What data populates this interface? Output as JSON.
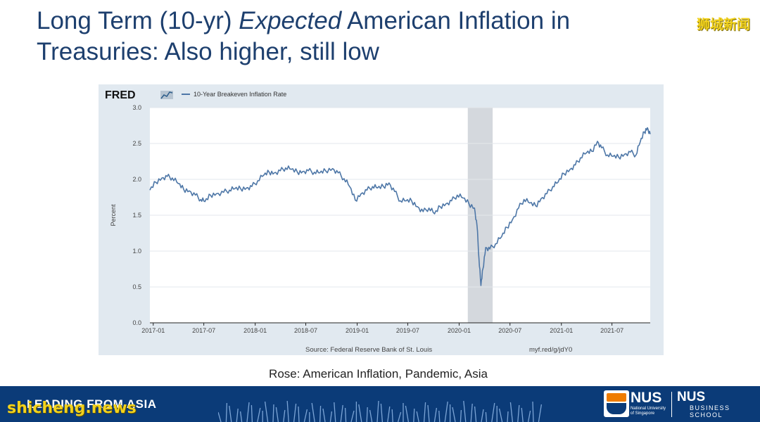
{
  "slide": {
    "title_part1": "Long Term (10-yr) ",
    "title_emphasis": "Expected",
    "title_part2": " American Inflation in Treasuries: Also higher, still low",
    "caption": "Rose: American Inflation, Pandemic, Asia"
  },
  "watermarks": {
    "top": "狮城新闻",
    "bottom": "shicheng.news"
  },
  "footer": {
    "tagline": "LEADING FROM ASIA",
    "nus_name": "NUS",
    "nus_sub_line1": "National University",
    "nus_sub_line2": "of Singapore",
    "school_name": "NUS",
    "school_line1": "BUSINESS",
    "school_line2": "SCHOOL"
  },
  "colors": {
    "title": "#1d3f6e",
    "line": "#4e77a7",
    "recession": "#d4d8dd",
    "footer_band": "#0b3b78",
    "frame": "#e1e9f0"
  },
  "chart_data": {
    "type": "line",
    "brand": "FRED",
    "legend": "10-Year Breakeven Inflation Rate",
    "ylabel": "Percent",
    "ylim": [
      0.0,
      3.0
    ],
    "yticks": [
      "0.0",
      "0.5",
      "1.0",
      "1.5",
      "2.0",
      "2.5",
      "3.0"
    ],
    "xlim": [
      "2016-12-20",
      "2021-11-15"
    ],
    "xticks": [
      "2017-01",
      "2017-07",
      "2018-01",
      "2018-07",
      "2019-01",
      "2019-07",
      "2020-01",
      "2020-07",
      "2021-01",
      "2021-07"
    ],
    "recession": {
      "start": "2020-02-01",
      "end": "2020-04-30"
    },
    "source": "Source: Federal Reserve Bank of St. Louis",
    "url": "myf.red/g/jdY0",
    "series": [
      {
        "name": "10-Year Breakeven Inflation Rate",
        "points": [
          [
            "2016-12-20",
            1.85
          ],
          [
            "2017-01-10",
            1.96
          ],
          [
            "2017-02-01",
            2.02
          ],
          [
            "2017-02-20",
            2.04
          ],
          [
            "2017-03-10",
            2.02
          ],
          [
            "2017-04-01",
            1.94
          ],
          [
            "2017-04-20",
            1.86
          ],
          [
            "2017-05-10",
            1.84
          ],
          [
            "2017-06-01",
            1.78
          ],
          [
            "2017-06-20",
            1.72
          ],
          [
            "2017-07-05",
            1.69
          ],
          [
            "2017-07-25",
            1.78
          ],
          [
            "2017-08-15",
            1.8
          ],
          [
            "2017-09-10",
            1.82
          ],
          [
            "2017-10-01",
            1.85
          ],
          [
            "2017-10-20",
            1.87
          ],
          [
            "2017-11-10",
            1.87
          ],
          [
            "2017-12-01",
            1.88
          ],
          [
            "2017-12-20",
            1.9
          ],
          [
            "2018-01-10",
            1.98
          ],
          [
            "2018-02-01",
            2.06
          ],
          [
            "2018-02-20",
            2.1
          ],
          [
            "2018-03-10",
            2.09
          ],
          [
            "2018-04-01",
            2.12
          ],
          [
            "2018-04-20",
            2.16
          ],
          [
            "2018-05-10",
            2.14
          ],
          [
            "2018-06-01",
            2.1
          ],
          [
            "2018-06-20",
            2.11
          ],
          [
            "2018-07-10",
            2.12
          ],
          [
            "2018-08-01",
            2.1
          ],
          [
            "2018-08-20",
            2.09
          ],
          [
            "2018-09-10",
            2.12
          ],
          [
            "2018-10-05",
            2.15
          ],
          [
            "2018-10-25",
            2.09
          ],
          [
            "2018-11-15",
            2.01
          ],
          [
            "2018-12-05",
            1.9
          ],
          [
            "2018-12-25",
            1.71
          ],
          [
            "2019-01-15",
            1.8
          ],
          [
            "2019-02-05",
            1.85
          ],
          [
            "2019-02-25",
            1.9
          ],
          [
            "2019-03-15",
            1.88
          ],
          [
            "2019-04-05",
            1.9
          ],
          [
            "2019-04-25",
            1.95
          ],
          [
            "2019-05-15",
            1.83
          ],
          [
            "2019-06-05",
            1.7
          ],
          [
            "2019-06-25",
            1.7
          ],
          [
            "2019-07-15",
            1.7
          ],
          [
            "2019-08-05",
            1.62
          ],
          [
            "2019-08-25",
            1.55
          ],
          [
            "2019-09-15",
            1.6
          ],
          [
            "2019-10-05",
            1.52
          ],
          [
            "2019-10-25",
            1.62
          ],
          [
            "2019-11-15",
            1.66
          ],
          [
            "2019-12-05",
            1.7
          ],
          [
            "2019-12-25",
            1.78
          ],
          [
            "2020-01-15",
            1.74
          ],
          [
            "2020-02-05",
            1.66
          ],
          [
            "2020-02-25",
            1.6
          ],
          [
            "2020-03-05",
            1.35
          ],
          [
            "2020-03-12",
            0.9
          ],
          [
            "2020-03-19",
            0.52
          ],
          [
            "2020-03-26",
            0.75
          ],
          [
            "2020-04-05",
            1.05
          ],
          [
            "2020-04-20",
            1.03
          ],
          [
            "2020-05-10",
            1.1
          ],
          [
            "2020-06-01",
            1.2
          ],
          [
            "2020-06-20",
            1.33
          ],
          [
            "2020-07-10",
            1.44
          ],
          [
            "2020-08-01",
            1.6
          ],
          [
            "2020-08-20",
            1.72
          ],
          [
            "2020-09-10",
            1.67
          ],
          [
            "2020-10-01",
            1.63
          ],
          [
            "2020-10-20",
            1.73
          ],
          [
            "2020-11-10",
            1.8
          ],
          [
            "2020-12-01",
            1.9
          ],
          [
            "2020-12-20",
            1.96
          ],
          [
            "2021-01-10",
            2.08
          ],
          [
            "2021-02-01",
            2.14
          ],
          [
            "2021-02-20",
            2.2
          ],
          [
            "2021-03-10",
            2.3
          ],
          [
            "2021-04-01",
            2.37
          ],
          [
            "2021-04-20",
            2.39
          ],
          [
            "2021-05-10",
            2.53
          ],
          [
            "2021-05-25",
            2.44
          ],
          [
            "2021-06-15",
            2.34
          ],
          [
            "2021-07-05",
            2.32
          ],
          [
            "2021-07-25",
            2.31
          ],
          [
            "2021-08-15",
            2.35
          ],
          [
            "2021-09-05",
            2.38
          ],
          [
            "2021-09-25",
            2.34
          ],
          [
            "2021-10-10",
            2.52
          ],
          [
            "2021-10-25",
            2.66
          ],
          [
            "2021-11-05",
            2.72
          ],
          [
            "2021-11-15",
            2.63
          ]
        ]
      }
    ]
  }
}
